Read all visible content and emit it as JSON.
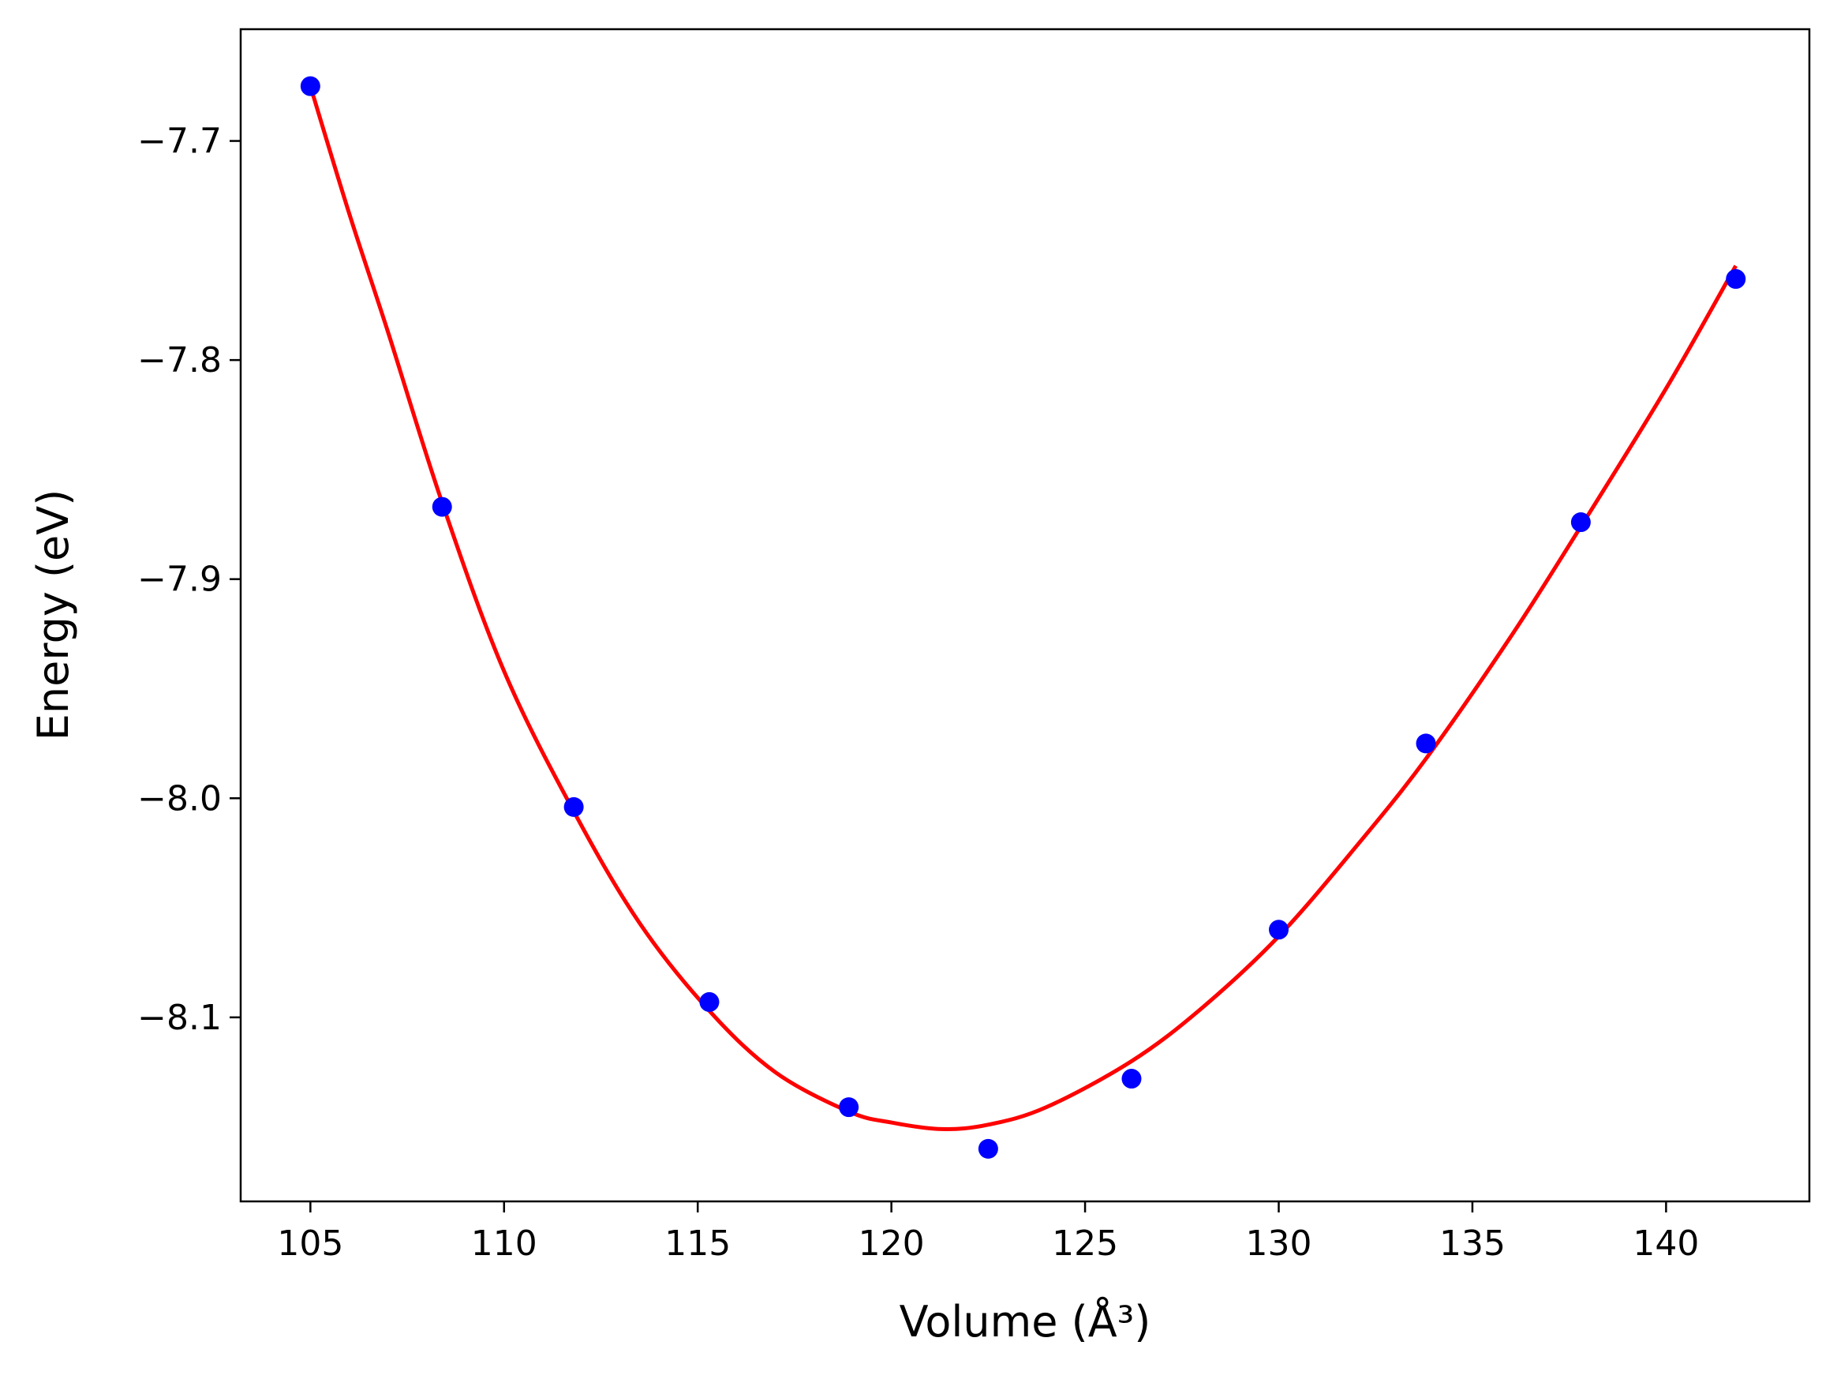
{
  "chart_data": {
    "type": "scatter",
    "xlabel": "Volume (Å³)",
    "ylabel": "Energy (eV)",
    "xlim": [
      103.2,
      143.7
    ],
    "ylim": [
      -8.184,
      -7.649
    ],
    "xticks": [
      105,
      110,
      115,
      120,
      125,
      130,
      135,
      140
    ],
    "xtick_labels": [
      "105",
      "110",
      "115",
      "120",
      "125",
      "130",
      "135",
      "140"
    ],
    "yticks": [
      -7.7,
      -7.8,
      -7.9,
      -8.0,
      -8.1
    ],
    "ytick_labels": [
      "−7.7",
      "−7.8",
      "−7.9",
      "−8.0",
      "−8.1"
    ],
    "grid": false,
    "legend": "none",
    "series": [
      {
        "kind": "points",
        "color": "#0000ff",
        "x": [
          105.0,
          108.4,
          111.8,
          115.3,
          118.9,
          122.5,
          126.2,
          130.0,
          133.8,
          137.8,
          141.8
        ],
        "y": [
          -7.675,
          -7.867,
          -8.004,
          -8.093,
          -8.141,
          -8.16,
          -8.128,
          -8.06,
          -7.975,
          -7.874,
          -7.763
        ]
      },
      {
        "kind": "fit-curve",
        "color": "#ff0000",
        "x": [
          105.0,
          106.0,
          107.0,
          108.4,
          110.0,
          111.8,
          113.5,
          115.3,
          117.0,
          118.9,
          120.0,
          121.3,
          122.5,
          124.0,
          126.2,
          128.0,
          130.0,
          132.0,
          133.8,
          136.0,
          137.8,
          140.0,
          141.8
        ],
        "y": [
          -7.675,
          -7.733,
          -7.787,
          -7.865,
          -7.942,
          -8.006,
          -8.057,
          -8.097,
          -8.125,
          -8.143,
          -8.148,
          -8.151,
          -8.149,
          -8.141,
          -8.12,
          -8.096,
          -8.063,
          -8.022,
          -7.982,
          -7.926,
          -7.876,
          -7.813,
          -7.757
        ]
      }
    ]
  }
}
